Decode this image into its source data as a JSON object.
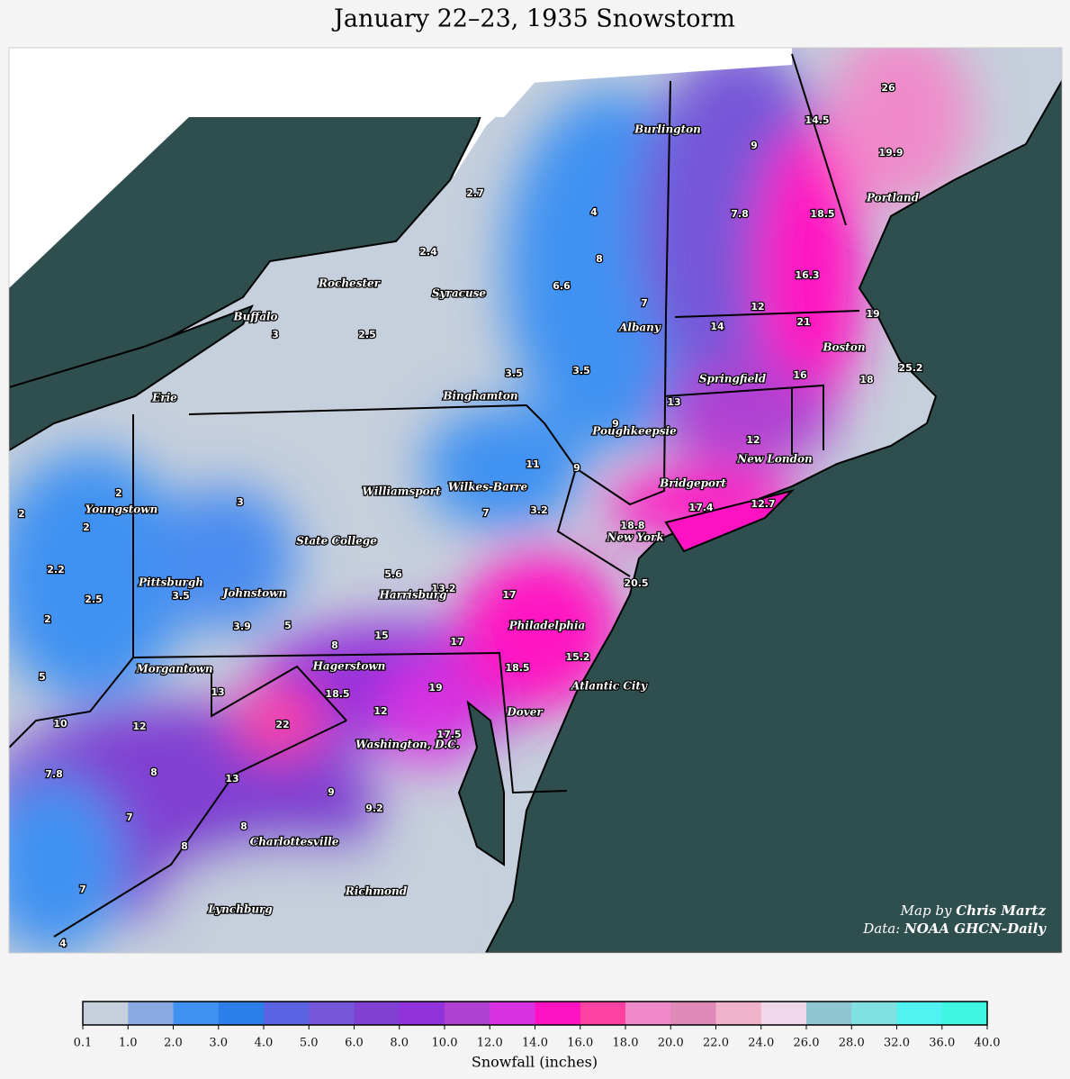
{
  "title": "January 22–23, 1935 Snowstorm",
  "map": {
    "cities": [
      "Burlington",
      "Portland",
      "Rochester",
      "Syracuse",
      "Buffalo",
      "Albany",
      "Boston",
      "Springfield",
      "Erie",
      "Binghamton",
      "Poughkeepsie",
      "New London",
      "Bridgeport",
      "Williamsport",
      "Wilkes-Barre",
      "Youngstown",
      "New York",
      "State College",
      "Pittsburgh",
      "Johnstown",
      "Harrisburg",
      "Philadelphia",
      "Morgantown",
      "Hagerstown",
      "Atlantic City",
      "Dover",
      "Washington, D.C.",
      "Charlottesville",
      "Richmond",
      "Lynchburg"
    ],
    "snowfall": [
      2.7,
      4,
      2.4,
      8,
      6.6,
      7,
      3,
      2.5,
      3.5,
      3.5,
      9,
      11,
      9,
      2,
      3,
      7,
      3.2,
      2,
      2,
      2.2,
      5.6,
      13.2,
      17,
      2.5,
      3.5,
      2,
      3.9,
      5,
      15,
      17,
      8,
      18.5,
      15.2,
      20.5,
      18.8,
      17.4,
      12.7,
      5,
      13,
      18.5,
      12,
      19,
      10,
      12,
      22,
      17.5,
      7.8,
      8,
      13,
      9,
      9.2,
      7,
      8,
      8,
      7,
      4,
      26,
      14.5,
      9,
      19.9,
      18.5,
      7.8,
      16.3,
      12,
      14,
      21,
      19,
      16,
      18,
      25.2,
      13,
      12
    ]
  },
  "credits": {
    "map_prefix": "Map by",
    "map_author": "Chris Martz",
    "data_prefix": "Data:",
    "data_source": "NOAA GHCN-Daily"
  },
  "legend": {
    "label": "Snowfall (inches)",
    "ticks": [
      {
        "value": 0.1,
        "label": "0.1"
      },
      {
        "value": 1,
        "label": "1.0"
      },
      {
        "value": 2,
        "label": "2.0"
      },
      {
        "value": 3,
        "label": "3.0"
      },
      {
        "value": 4,
        "label": "4.0"
      },
      {
        "value": 5,
        "label": "5.0"
      },
      {
        "value": 6,
        "label": "6.0"
      },
      {
        "value": 8,
        "label": "8.0"
      },
      {
        "value": 10,
        "label": "10.0"
      },
      {
        "value": 12,
        "label": "12.0"
      },
      {
        "value": 14,
        "label": "14.0"
      },
      {
        "value": 16,
        "label": "16.0"
      },
      {
        "value": 18,
        "label": "18.0"
      },
      {
        "value": 20,
        "label": "20.0"
      },
      {
        "value": 22,
        "label": "22.0"
      },
      {
        "value": 24,
        "label": "24.0"
      },
      {
        "value": 26,
        "label": "26.0"
      },
      {
        "value": 28,
        "label": "28.0"
      },
      {
        "value": 32,
        "label": "32.0"
      },
      {
        "value": 36,
        "label": "36.0"
      },
      {
        "value": 40,
        "label": "40.0"
      }
    ],
    "colors": [
      "#c6cfdc",
      "#8aa9e2",
      "#4092f2",
      "#2c7ee9",
      "#5a64e2",
      "#7656d9",
      "#8040d2",
      "#9232da",
      "#b040d2",
      "#d832e2",
      "#ff12c2",
      "#ff42a2",
      "#f08aca",
      "#e08aba",
      "#f0b2ca",
      "#f0d8ea",
      "#90c6d2",
      "#80e0e2",
      "#52f2f2",
      "#40f8e2"
    ]
  }
}
